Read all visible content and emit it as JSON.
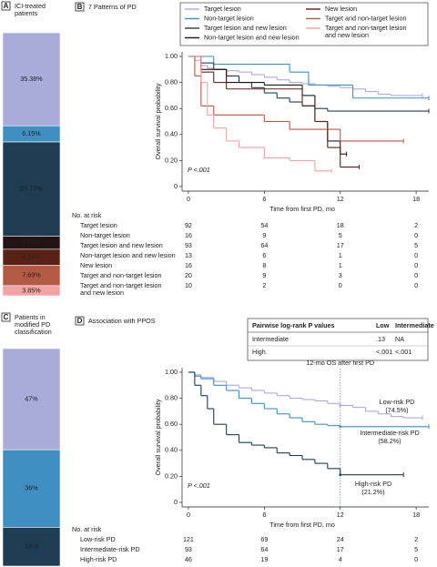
{
  "chart_data": [
    {
      "type": "stacked-bar",
      "panel": "A",
      "title": "ICI-treated patients",
      "values": [
        35.38,
        6.15,
        35.77,
        5.0,
        6.15,
        7.69,
        3.85
      ],
      "value_labels": [
        "35.38%",
        "6.15%",
        "35.77%",
        "5.00%",
        "6.15%",
        "7.69%",
        "3.85%"
      ],
      "colors": [
        "#a9acd9",
        "#3f8fc2",
        "#1e3c52",
        "#221414",
        "#5a2216",
        "#b35a45",
        "#f3a3a3"
      ]
    },
    {
      "type": "survival",
      "panel": "B",
      "title": "7 Patterns of PD",
      "xlabel": "Time from first PD, mo",
      "ylabel": "Overall survival probability",
      "annotation": "P <.001",
      "xlim": [
        -0.5,
        19
      ],
      "ylim": [
        0,
        1
      ],
      "xticks": [
        0,
        6,
        12,
        18
      ],
      "yticks": [
        0,
        {
          "value": 0.2,
          "label": "0.20"
        },
        {
          "value": 0.4,
          "label": "0.40"
        },
        {
          "value": 0.6,
          "label": "0.60"
        },
        {
          "value": 0.8,
          "label": "0.80"
        },
        {
          "value": 1,
          "label": "1.00"
        }
      ],
      "legend": "top-right",
      "risk_title": "No. at risk",
      "series": [
        {
          "name": "Target lesion",
          "color": "#a9acd9",
          "x": [
            0,
            0.5,
            1,
            1.5,
            2,
            3,
            4,
            5,
            6,
            7,
            8,
            9,
            10,
            11,
            12,
            13,
            14,
            15,
            16,
            17,
            18.5
          ],
          "values": [
            1,
            0.97,
            0.93,
            0.91,
            0.9,
            0.89,
            0.88,
            0.86,
            0.84,
            0.82,
            0.8,
            0.79,
            0.78,
            0.77,
            0.76,
            0.75,
            0.73,
            0.71,
            0.7,
            0.7,
            0.7
          ],
          "at_risk": [
            92,
            54,
            18,
            2
          ]
        },
        {
          "name": "Non-target lesion",
          "color": "#3f8fc2",
          "x": [
            0,
            2,
            4,
            6,
            8,
            9.5,
            13,
            19
          ],
          "values": [
            1,
            0.94,
            0.94,
            0.94,
            0.88,
            0.78,
            0.68,
            0.68
          ],
          "at_risk": [
            16,
            9,
            5,
            0
          ]
        },
        {
          "name": "Target lesion and new lesion",
          "color": "#1e3c52",
          "x": [
            0,
            1,
            2,
            3,
            4,
            5,
            6,
            7,
            8,
            9,
            10,
            11,
            12,
            19
          ],
          "values": [
            1,
            0.95,
            0.9,
            0.85,
            0.8,
            0.76,
            0.72,
            0.68,
            0.65,
            0.62,
            0.6,
            0.58,
            0.58,
            0.58
          ],
          "at_risk": [
            93,
            64,
            17,
            5
          ]
        },
        {
          "name": "Non-target lesion and new lesion",
          "color": "#221414",
          "x": [
            0,
            1,
            3,
            6,
            9,
            10,
            11,
            12,
            12.5
          ],
          "values": [
            1,
            0.9,
            0.8,
            0.78,
            0.7,
            0.5,
            0.35,
            0.25,
            0.25
          ],
          "at_risk": [
            13,
            6,
            1,
            0
          ]
        },
        {
          "name": "New lesion",
          "color": "#5a2216",
          "x": [
            0,
            1,
            2,
            3,
            6,
            9,
            10,
            11,
            12,
            13.5
          ],
          "values": [
            1,
            0.88,
            0.8,
            0.75,
            0.75,
            0.62,
            0.5,
            0.3,
            0.15,
            0.15
          ],
          "at_risk": [
            16,
            8,
            1,
            0
          ]
        },
        {
          "name": "Target and non-target lesion",
          "color": "#b35a45",
          "x": [
            0,
            0.5,
            1,
            2,
            6,
            8,
            11,
            12,
            17
          ],
          "values": [
            1,
            0.85,
            0.62,
            0.55,
            0.5,
            0.44,
            0.44,
            0.35,
            0.35
          ],
          "at_risk": [
            20,
            9,
            3,
            0
          ]
        },
        {
          "name": "Target and non-target lesion and new lesion",
          "color": "#f3a3a3",
          "x": [
            0,
            1,
            1.5,
            2,
            3,
            4,
            6,
            8,
            10,
            11.3
          ],
          "values": [
            1,
            0.8,
            0.55,
            0.45,
            0.35,
            0.3,
            0.22,
            0.2,
            0.12,
            0.12
          ],
          "at_risk": [
            10,
            2,
            0,
            0
          ]
        }
      ]
    },
    {
      "type": "stacked-bar",
      "panel": "C",
      "title": "Patients in modified PD classification",
      "values": [
        47,
        36,
        18
      ],
      "value_labels": [
        "47%",
        "36%",
        "18%"
      ],
      "colors": [
        "#a9acd9",
        "#3f8fc2",
        "#1e3c52"
      ]
    },
    {
      "type": "survival",
      "panel": "D",
      "title": "Association with PPOS",
      "xlabel": "Time from first PD, mo",
      "ylabel": "Overall survival probability",
      "annotation": "P <.001",
      "xlim": [
        -0.5,
        19
      ],
      "ylim": [
        0,
        1
      ],
      "xticks": [
        0,
        6,
        12,
        18
      ],
      "yticks": [
        0,
        {
          "value": 0.2,
          "label": "0.20"
        },
        {
          "value": 0.4,
          "label": "0.40"
        },
        {
          "value": 0.6,
          "label": "0.60"
        },
        {
          "value": 0.8,
          "label": "0.80"
        },
        {
          "value": 1,
          "label": "1.00"
        }
      ],
      "risk_title": "No. at risk",
      "pvalue_table": {
        "corner": "Pairwise log-rank P values",
        "columns": [
          "Low",
          "Intermediate"
        ],
        "rows": [
          {
            "name": "Intermediate",
            "cells": [
              ".13",
              "NA"
            ]
          },
          {
            "name": "High",
            "cells": [
              "<.001",
              "<.001"
            ]
          }
        ]
      },
      "landmark": {
        "x": 12,
        "label": "12-mo OS after first PD",
        "values": [
          0.745,
          0.582,
          0.212
        ],
        "value_labels": [
          "(74.5%)",
          "(58.2%)",
          "(21.2%)"
        ]
      },
      "series": [
        {
          "name": "Low-risk PD",
          "color": "#a9acd9",
          "x": [
            0,
            0.5,
            1,
            2,
            3,
            4,
            5,
            6,
            7,
            8,
            9,
            10,
            11,
            12,
            13,
            14,
            15,
            16,
            17,
            18.5
          ],
          "values": [
            1,
            0.98,
            0.96,
            0.93,
            0.9,
            0.88,
            0.86,
            0.84,
            0.82,
            0.8,
            0.79,
            0.78,
            0.76,
            0.745,
            0.73,
            0.7,
            0.68,
            0.66,
            0.65,
            0.65
          ],
          "at_risk": [
            121,
            69,
            24,
            2
          ]
        },
        {
          "name": "Intermediate-risk PD",
          "color": "#3f8fc2",
          "x": [
            0,
            0.5,
            1,
            2,
            3,
            4,
            5,
            6,
            7,
            8,
            9,
            10,
            11,
            12,
            19
          ],
          "values": [
            1,
            0.97,
            0.95,
            0.9,
            0.86,
            0.8,
            0.76,
            0.72,
            0.68,
            0.65,
            0.62,
            0.6,
            0.59,
            0.582,
            0.582
          ],
          "at_risk": [
            93,
            64,
            17,
            5
          ]
        },
        {
          "name": "High-risk PD",
          "color": "#1e3c52",
          "x": [
            0,
            0.5,
            1,
            1.5,
            2,
            3,
            4,
            5,
            6,
            7,
            8,
            9,
            10,
            11,
            12,
            13,
            17
          ],
          "values": [
            1,
            0.9,
            0.82,
            0.72,
            0.6,
            0.52,
            0.46,
            0.44,
            0.42,
            0.38,
            0.36,
            0.33,
            0.3,
            0.26,
            0.212,
            0.212,
            0.212
          ],
          "at_risk": [
            46,
            19,
            4,
            0
          ]
        }
      ]
    }
  ]
}
